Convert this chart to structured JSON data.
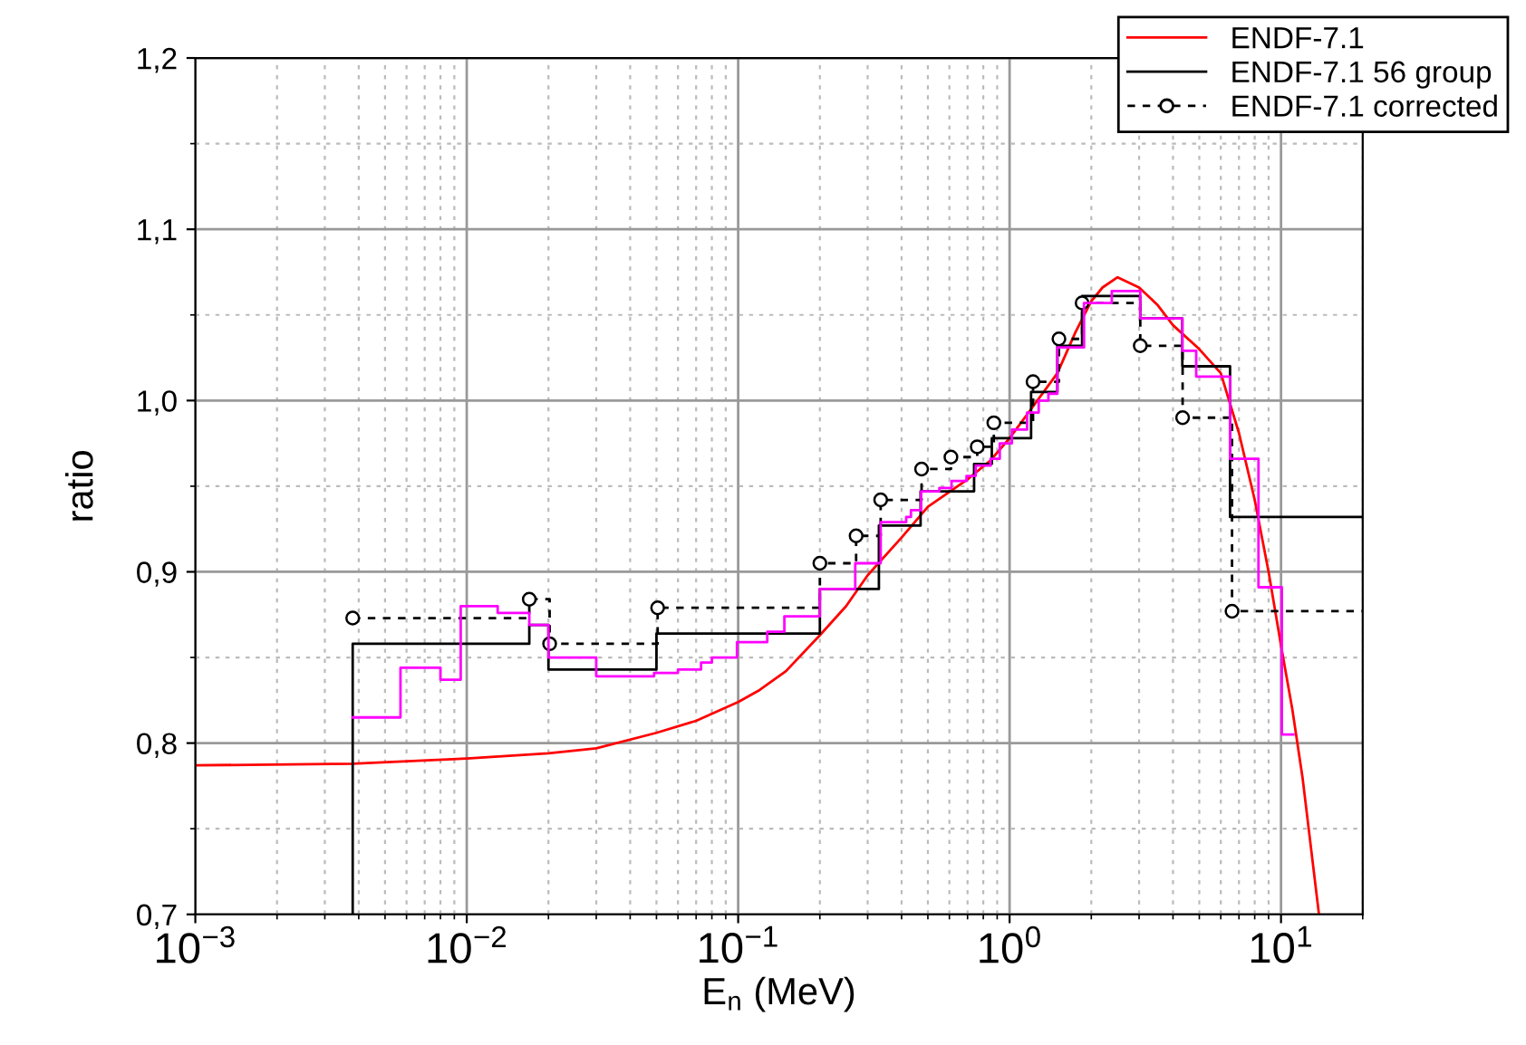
{
  "chart_data": {
    "type": "step",
    "xlabel": "E$_{n}$ (MeV)",
    "ylabel": "ratio",
    "log": "x",
    "grid": true,
    "legend": "top right",
    "xlim": [
      0.001,
      20
    ],
    "ylim": [
      0.7,
      1.2
    ],
    "xticks": [
      {
        "value": 0.001,
        "label": "10$^{−3}$"
      },
      {
        "value": 0.01,
        "label": "10$^{−2}$"
      },
      {
        "value": 0.1,
        "label": "10$^{−1}$"
      },
      {
        "value": 1,
        "label": "10$^{0}$"
      },
      {
        "value": 10,
        "label": "10$^{1}$"
      }
    ],
    "yticks": [
      {
        "value": 0.7,
        "label": "0,7"
      },
      {
        "value": 0.8,
        "label": "0,8"
      },
      {
        "value": 0.9,
        "label": "0,9"
      },
      {
        "value": 1.0,
        "label": "1,0"
      },
      {
        "value": 1.1,
        "label": "1,1"
      },
      {
        "value": 1.2,
        "label": "1,2"
      }
    ],
    "series": [
      {
        "name": "ENDF-7.1",
        "type": "line",
        "color": "#ff0000",
        "marker": "none",
        "line_style": "solid",
        "x": [
          0.001,
          0.0038,
          0.01,
          0.02,
          0.03,
          0.05,
          0.07,
          0.1,
          0.12,
          0.15,
          0.2,
          0.25,
          0.3,
          0.4,
          0.5,
          0.7,
          0.85,
          1.0,
          1.2,
          1.5,
          1.75,
          2.0,
          2.2,
          2.5,
          3.0,
          3.5,
          4.0,
          5.0,
          6.0,
          7.0,
          8.0,
          9.0,
          10,
          11,
          12,
          13.8
        ],
        "values": [
          0.787,
          0.788,
          0.791,
          0.794,
          0.797,
          0.806,
          0.813,
          0.824,
          0.831,
          0.842,
          0.863,
          0.88,
          0.898,
          0.92,
          0.938,
          0.954,
          0.965,
          0.978,
          0.995,
          1.016,
          1.04,
          1.058,
          1.066,
          1.072,
          1.066,
          1.056,
          1.044,
          1.03,
          1.016,
          0.981,
          0.942,
          0.9,
          0.857,
          0.82,
          0.78,
          0.7
        ]
      },
      {
        "name": "ENDF-7.1 56 group",
        "color": "#000000",
        "marker": "none",
        "line_style": "solid",
        "x": [
          0.0038,
          0.0038,
          0.017,
          0.02,
          0.05,
          0.2,
          0.33,
          0.47,
          0.74,
          0.86,
          1.2,
          1.5,
          1.85,
          3.03,
          4.33,
          6.49,
          20
        ],
        "values": [
          0.7,
          0.858,
          0.869,
          0.843,
          0.864,
          0.89,
          0.927,
          0.947,
          0.963,
          0.978,
          1.005,
          1.032,
          1.061,
          1.048,
          1.02,
          0.932,
          0.932
        ]
      },
      {
        "name": "ENDF-7.1 corrected",
        "color": "#000000",
        "marker": "circle",
        "line_style": "dashed",
        "x": [
          0.0038,
          0.017,
          0.0202,
          0.0505,
          0.2,
          0.272,
          0.335,
          0.474,
          0.608,
          0.76,
          0.875,
          1.22,
          1.52,
          1.85,
          3.03,
          4.34,
          6.6,
          20
        ],
        "values": [
          0.873,
          0.884,
          0.858,
          0.879,
          0.905,
          0.921,
          0.942,
          0.96,
          0.967,
          0.973,
          0.987,
          1.011,
          1.036,
          1.057,
          1.032,
          0.99,
          0.877,
          0.877
        ]
      },
      {
        "color": "#ff00ff",
        "marker": "none",
        "line_style": "solid",
        "x": [
          0.0038,
          0.0057,
          0.008,
          0.0095,
          0.013,
          0.017,
          0.02,
          0.03,
          0.049,
          0.06,
          0.073,
          0.08,
          0.099,
          0.128,
          0.148,
          0.2,
          0.27,
          0.335,
          0.416,
          0.433,
          0.472,
          0.551,
          0.611,
          0.694,
          0.75,
          0.851,
          0.92,
          1.02,
          1.16,
          1.28,
          1.39,
          1.5,
          1.88,
          2.38,
          3.03,
          4.33,
          4.87,
          6.49,
          8.26,
          10.07,
          11.1
        ],
        "values": [
          0.815,
          0.844,
          0.837,
          0.88,
          0.876,
          0.869,
          0.85,
          0.839,
          0.841,
          0.843,
          0.847,
          0.85,
          0.859,
          0.865,
          0.874,
          0.89,
          0.905,
          0.929,
          0.932,
          0.936,
          0.947,
          0.949,
          0.953,
          0.956,
          0.962,
          0.966,
          0.975,
          0.983,
          0.993,
          1.0,
          1.004,
          1.031,
          1.057,
          1.064,
          1.048,
          1.029,
          1.014,
          0.966,
          0.891,
          0.805,
          0.805
        ]
      }
    ]
  }
}
